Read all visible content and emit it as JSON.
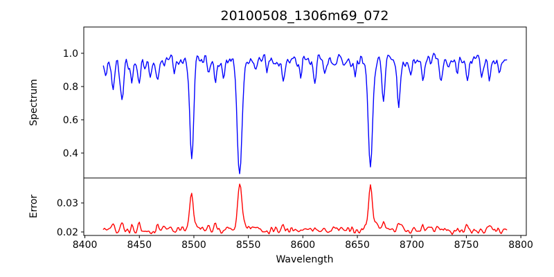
{
  "chart_data": {
    "type": "line",
    "title": "20100508_1306m69_072",
    "xlabel": "Wavelength",
    "xlim": [
      8399,
      8805
    ],
    "x_start": 8417,
    "x_end": 8787,
    "x_step": 1,
    "noise_seed": 20100508,
    "grid": false,
    "legend": "none",
    "xticks": [
      {
        "value": 8400,
        "label": "8400"
      },
      {
        "value": 8450,
        "label": "8450"
      },
      {
        "value": 8500,
        "label": "8500"
      },
      {
        "value": 8550,
        "label": "8550"
      },
      {
        "value": 8600,
        "label": "8600"
      },
      {
        "value": 8650,
        "label": "8650"
      },
      {
        "value": 8700,
        "label": "8700"
      },
      {
        "value": 8750,
        "label": "8750"
      },
      {
        "value": 8800,
        "label": "8800"
      }
    ],
    "panels": [
      {
        "id": "spectrum",
        "ylabel": "Spectrum",
        "line_color": "#0000ff",
        "ylim": [
          0.25,
          1.158
        ],
        "yticks": [
          {
            "value": 1.0,
            "label": "1.0"
          },
          {
            "value": 0.8,
            "label": "0.8"
          },
          {
            "value": 0.6,
            "label": "0.6"
          },
          {
            "value": 0.4,
            "label": "0.4"
          }
        ],
        "continuum": 0.955,
        "noise_amplitude": 0.115,
        "absorption_lines": [
          {
            "center": 8419,
            "depth": 0.1,
            "width": 1.1
          },
          {
            "center": 8426,
            "depth": 0.17,
            "width": 1.2
          },
          {
            "center": 8434,
            "depth": 0.26,
            "width": 1.5
          },
          {
            "center": 8443,
            "depth": 0.12,
            "width": 1.1
          },
          {
            "center": 8450,
            "depth": 0.15,
            "width": 1.2
          },
          {
            "center": 8460,
            "depth": 0.09,
            "width": 1.1
          },
          {
            "center": 8467,
            "depth": 0.12,
            "width": 1.2
          },
          {
            "center": 8482,
            "depth": 0.08,
            "width": 1.1
          },
          {
            "center": 8498,
            "depth": 0.55,
            "width": 1.8
          },
          {
            "center": 8514,
            "depth": 0.09,
            "width": 1.1
          },
          {
            "center": 8520,
            "depth": 0.11,
            "width": 1.2
          },
          {
            "center": 8527,
            "depth": 0.08,
            "width": 1.1
          },
          {
            "center": 8542,
            "depth": 0.69,
            "width": 2.2
          },
          {
            "center": 8556,
            "depth": 0.08,
            "width": 1.1
          },
          {
            "center": 8567,
            "depth": 0.08,
            "width": 1.1
          },
          {
            "center": 8582,
            "depth": 0.13,
            "width": 1.3
          },
          {
            "center": 8598,
            "depth": 0.09,
            "width": 1.1
          },
          {
            "center": 8611,
            "depth": 0.11,
            "width": 1.2
          },
          {
            "center": 8621,
            "depth": 0.08,
            "width": 1.1
          },
          {
            "center": 8648,
            "depth": 0.09,
            "width": 1.1
          },
          {
            "center": 8662,
            "depth": 0.64,
            "width": 2.0
          },
          {
            "center": 8674,
            "depth": 0.22,
            "width": 1.3
          },
          {
            "center": 8688,
            "depth": 0.27,
            "width": 1.4
          },
          {
            "center": 8699,
            "depth": 0.09,
            "width": 1.1
          },
          {
            "center": 8710,
            "depth": 0.12,
            "width": 1.2
          },
          {
            "center": 8727,
            "depth": 0.13,
            "width": 1.2
          },
          {
            "center": 8742,
            "depth": 0.09,
            "width": 1.1
          },
          {
            "center": 8751,
            "depth": 0.12,
            "width": 1.2
          },
          {
            "center": 8764,
            "depth": 0.09,
            "width": 1.1
          },
          {
            "center": 8771,
            "depth": 0.14,
            "width": 1.2
          },
          {
            "center": 8780,
            "depth": 0.09,
            "width": 1.1
          }
        ],
        "key_minima": [
          {
            "wavelength": 8498,
            "value": 0.41
          },
          {
            "wavelength": 8542,
            "value": 0.28
          },
          {
            "wavelength": 8662,
            "value": 0.33
          }
        ]
      },
      {
        "id": "error",
        "ylabel": "Error",
        "line_color": "#ff0000",
        "ylim": [
          0.0188,
          0.0386
        ],
        "yticks": [
          {
            "value": 0.03,
            "label": "0.03"
          },
          {
            "value": 0.02,
            "label": "0.02"
          }
        ],
        "baseline": 0.0207,
        "noise_amplitude": 0.0035,
        "peaks": [
          {
            "center": 8426,
            "height": 0.002,
            "width": 1.2
          },
          {
            "center": 8434,
            "height": 0.0025,
            "width": 1.4
          },
          {
            "center": 8443,
            "height": 0.0018,
            "width": 1.1
          },
          {
            "center": 8450,
            "height": 0.0018,
            "width": 1.1
          },
          {
            "center": 8467,
            "height": 0.0012,
            "width": 1.1
          },
          {
            "center": 8498,
            "height": 0.011,
            "width": 1.5
          },
          {
            "center": 8498,
            "height": 0.0015,
            "width": 3.5
          },
          {
            "center": 8514,
            "height": 0.0012,
            "width": 1.1
          },
          {
            "center": 8520,
            "height": 0.0018,
            "width": 1.2
          },
          {
            "center": 8542,
            "height": 0.0145,
            "width": 1.8
          },
          {
            "center": 8542,
            "height": 0.002,
            "width": 4.0
          },
          {
            "center": 8582,
            "height": 0.0012,
            "width": 1.2
          },
          {
            "center": 8611,
            "height": 0.001,
            "width": 1.1
          },
          {
            "center": 8662,
            "height": 0.0135,
            "width": 1.6
          },
          {
            "center": 8662,
            "height": 0.0022,
            "width": 4.0
          },
          {
            "center": 8674,
            "height": 0.003,
            "width": 1.3
          },
          {
            "center": 8688,
            "height": 0.0032,
            "width": 1.3
          },
          {
            "center": 8710,
            "height": 0.0012,
            "width": 1.1
          },
          {
            "center": 8727,
            "height": 0.0014,
            "width": 1.2
          },
          {
            "center": 8751,
            "height": 0.0012,
            "width": 1.1
          },
          {
            "center": 8771,
            "height": 0.0015,
            "width": 1.2
          }
        ],
        "peak_maxima": [
          {
            "wavelength": 8498,
            "value": 0.0335
          },
          {
            "wavelength": 8542,
            "value": 0.0372
          },
          {
            "wavelength": 8662,
            "value": 0.0368
          }
        ]
      }
    ]
  }
}
